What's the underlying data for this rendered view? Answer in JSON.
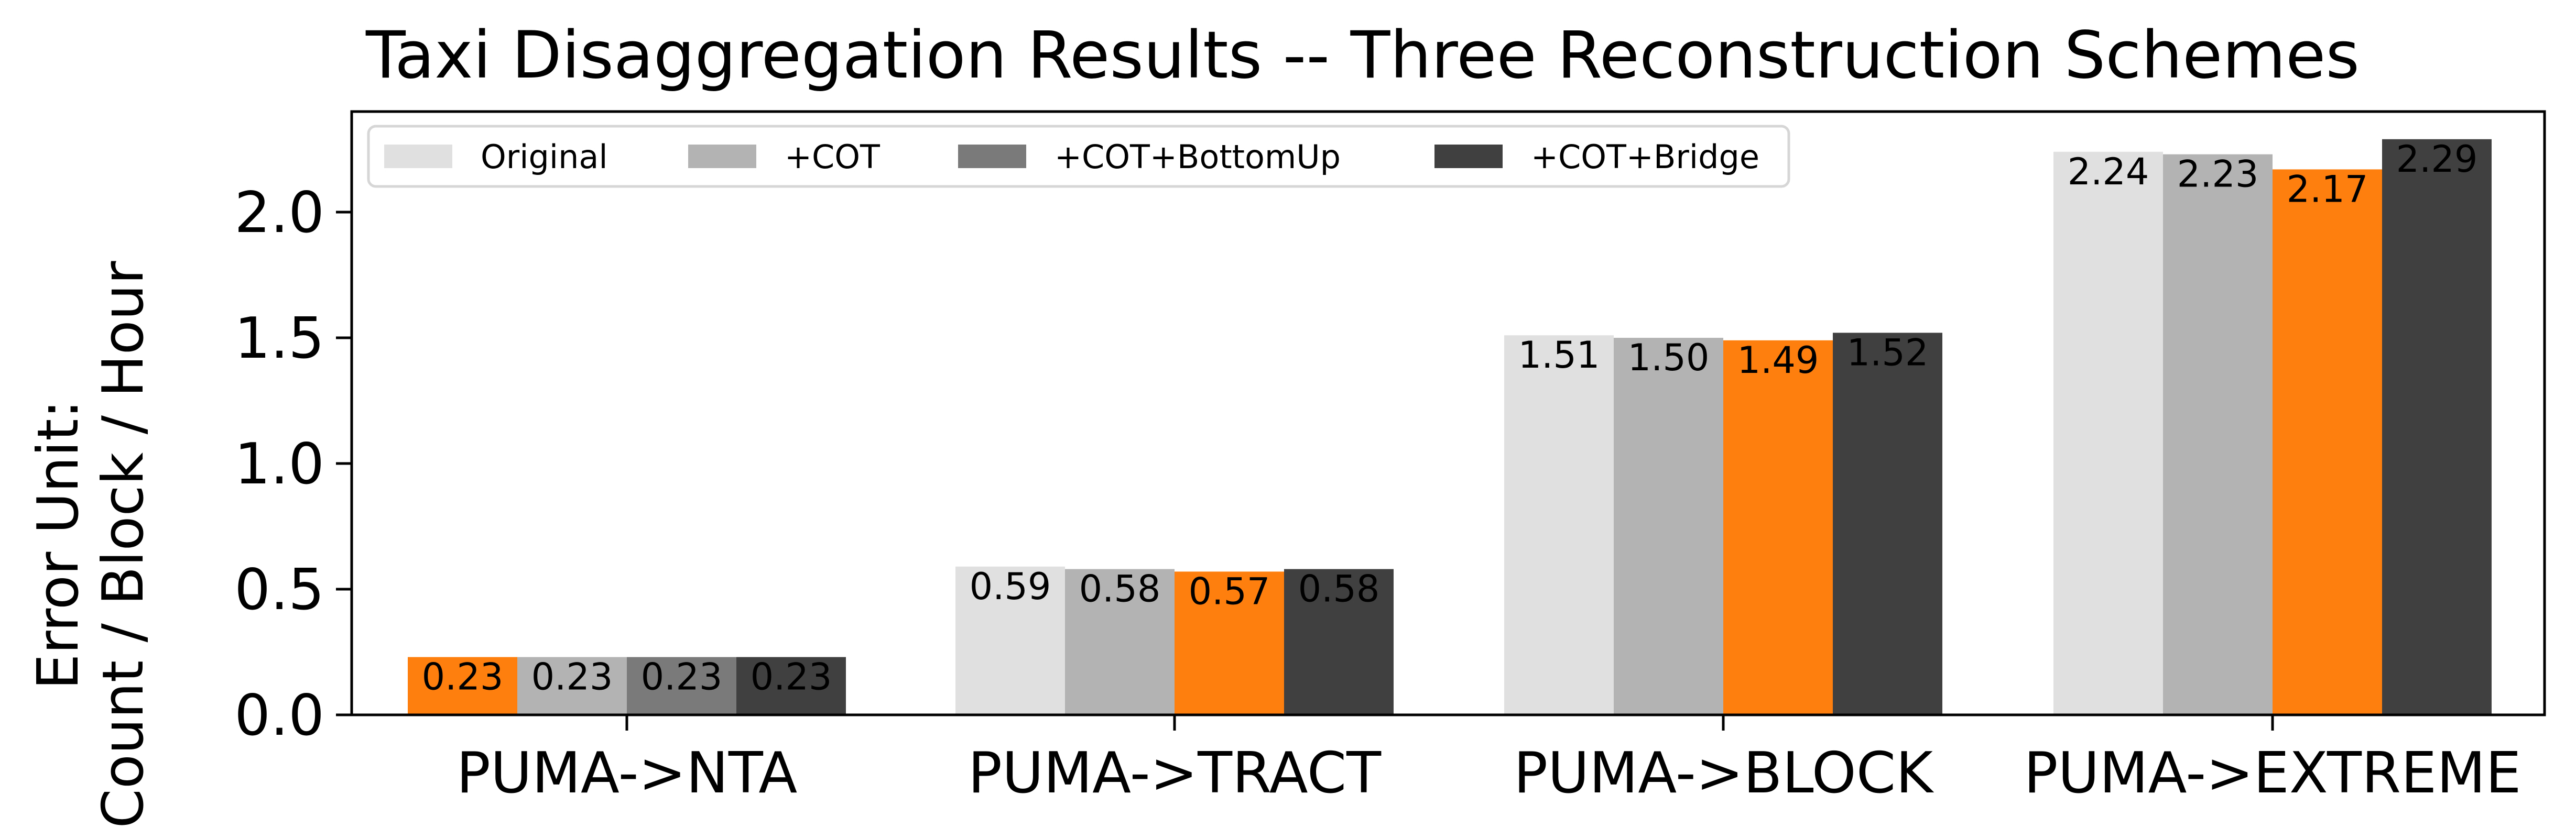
{
  "chart_data": {
    "type": "bar",
    "title": "Taxi Disaggregation Results -- Three Reconstruction Schemes",
    "xlabel": "",
    "ylabel_lines": [
      "Error Unit:",
      "Count / Block / Hour"
    ],
    "categories": [
      "PUMA->NTA",
      "PUMA->TRACT",
      "PUMA->BLOCK",
      "PUMA->EXTREME"
    ],
    "ylim": [
      0,
      2.4
    ],
    "yticks": [
      "0.0",
      "0.5",
      "1.0",
      "1.5",
      "2.0"
    ],
    "ytick_values": [
      0.0,
      0.5,
      1.0,
      1.5,
      2.0
    ],
    "grid": false,
    "legend_position": "top-left",
    "highlight_color": "#ff7f0e",
    "highlight_rule": "lowest value in each category",
    "series": [
      {
        "name": "Original",
        "color": "#e0e0e0",
        "values": [
          0.23,
          0.59,
          1.51,
          2.24
        ],
        "labels": [
          "0.23",
          "0.59",
          "1.51",
          "2.24"
        ]
      },
      {
        "name": "+COT",
        "color": "#b3b3b3",
        "values": [
          0.23,
          0.58,
          1.5,
          2.23
        ],
        "labels": [
          "0.23",
          "0.58",
          "1.50",
          "2.23"
        ]
      },
      {
        "name": "+COT+BottomUp",
        "color": "#7a7a7a",
        "values": [
          0.23,
          0.57,
          1.49,
          2.17
        ],
        "labels": [
          "0.23",
          "0.57",
          "1.49",
          "2.17"
        ]
      },
      {
        "name": "+COT+Bridge",
        "color": "#404040",
        "values": [
          0.23,
          0.58,
          1.52,
          2.29
        ],
        "labels": [
          "0.23",
          "0.58",
          "1.52",
          "2.29"
        ]
      }
    ],
    "highlighted_bars": [
      {
        "category": 0,
        "series": 0
      },
      {
        "category": 1,
        "series": 2
      },
      {
        "category": 2,
        "series": 2
      },
      {
        "category": 3,
        "series": 2
      }
    ]
  }
}
